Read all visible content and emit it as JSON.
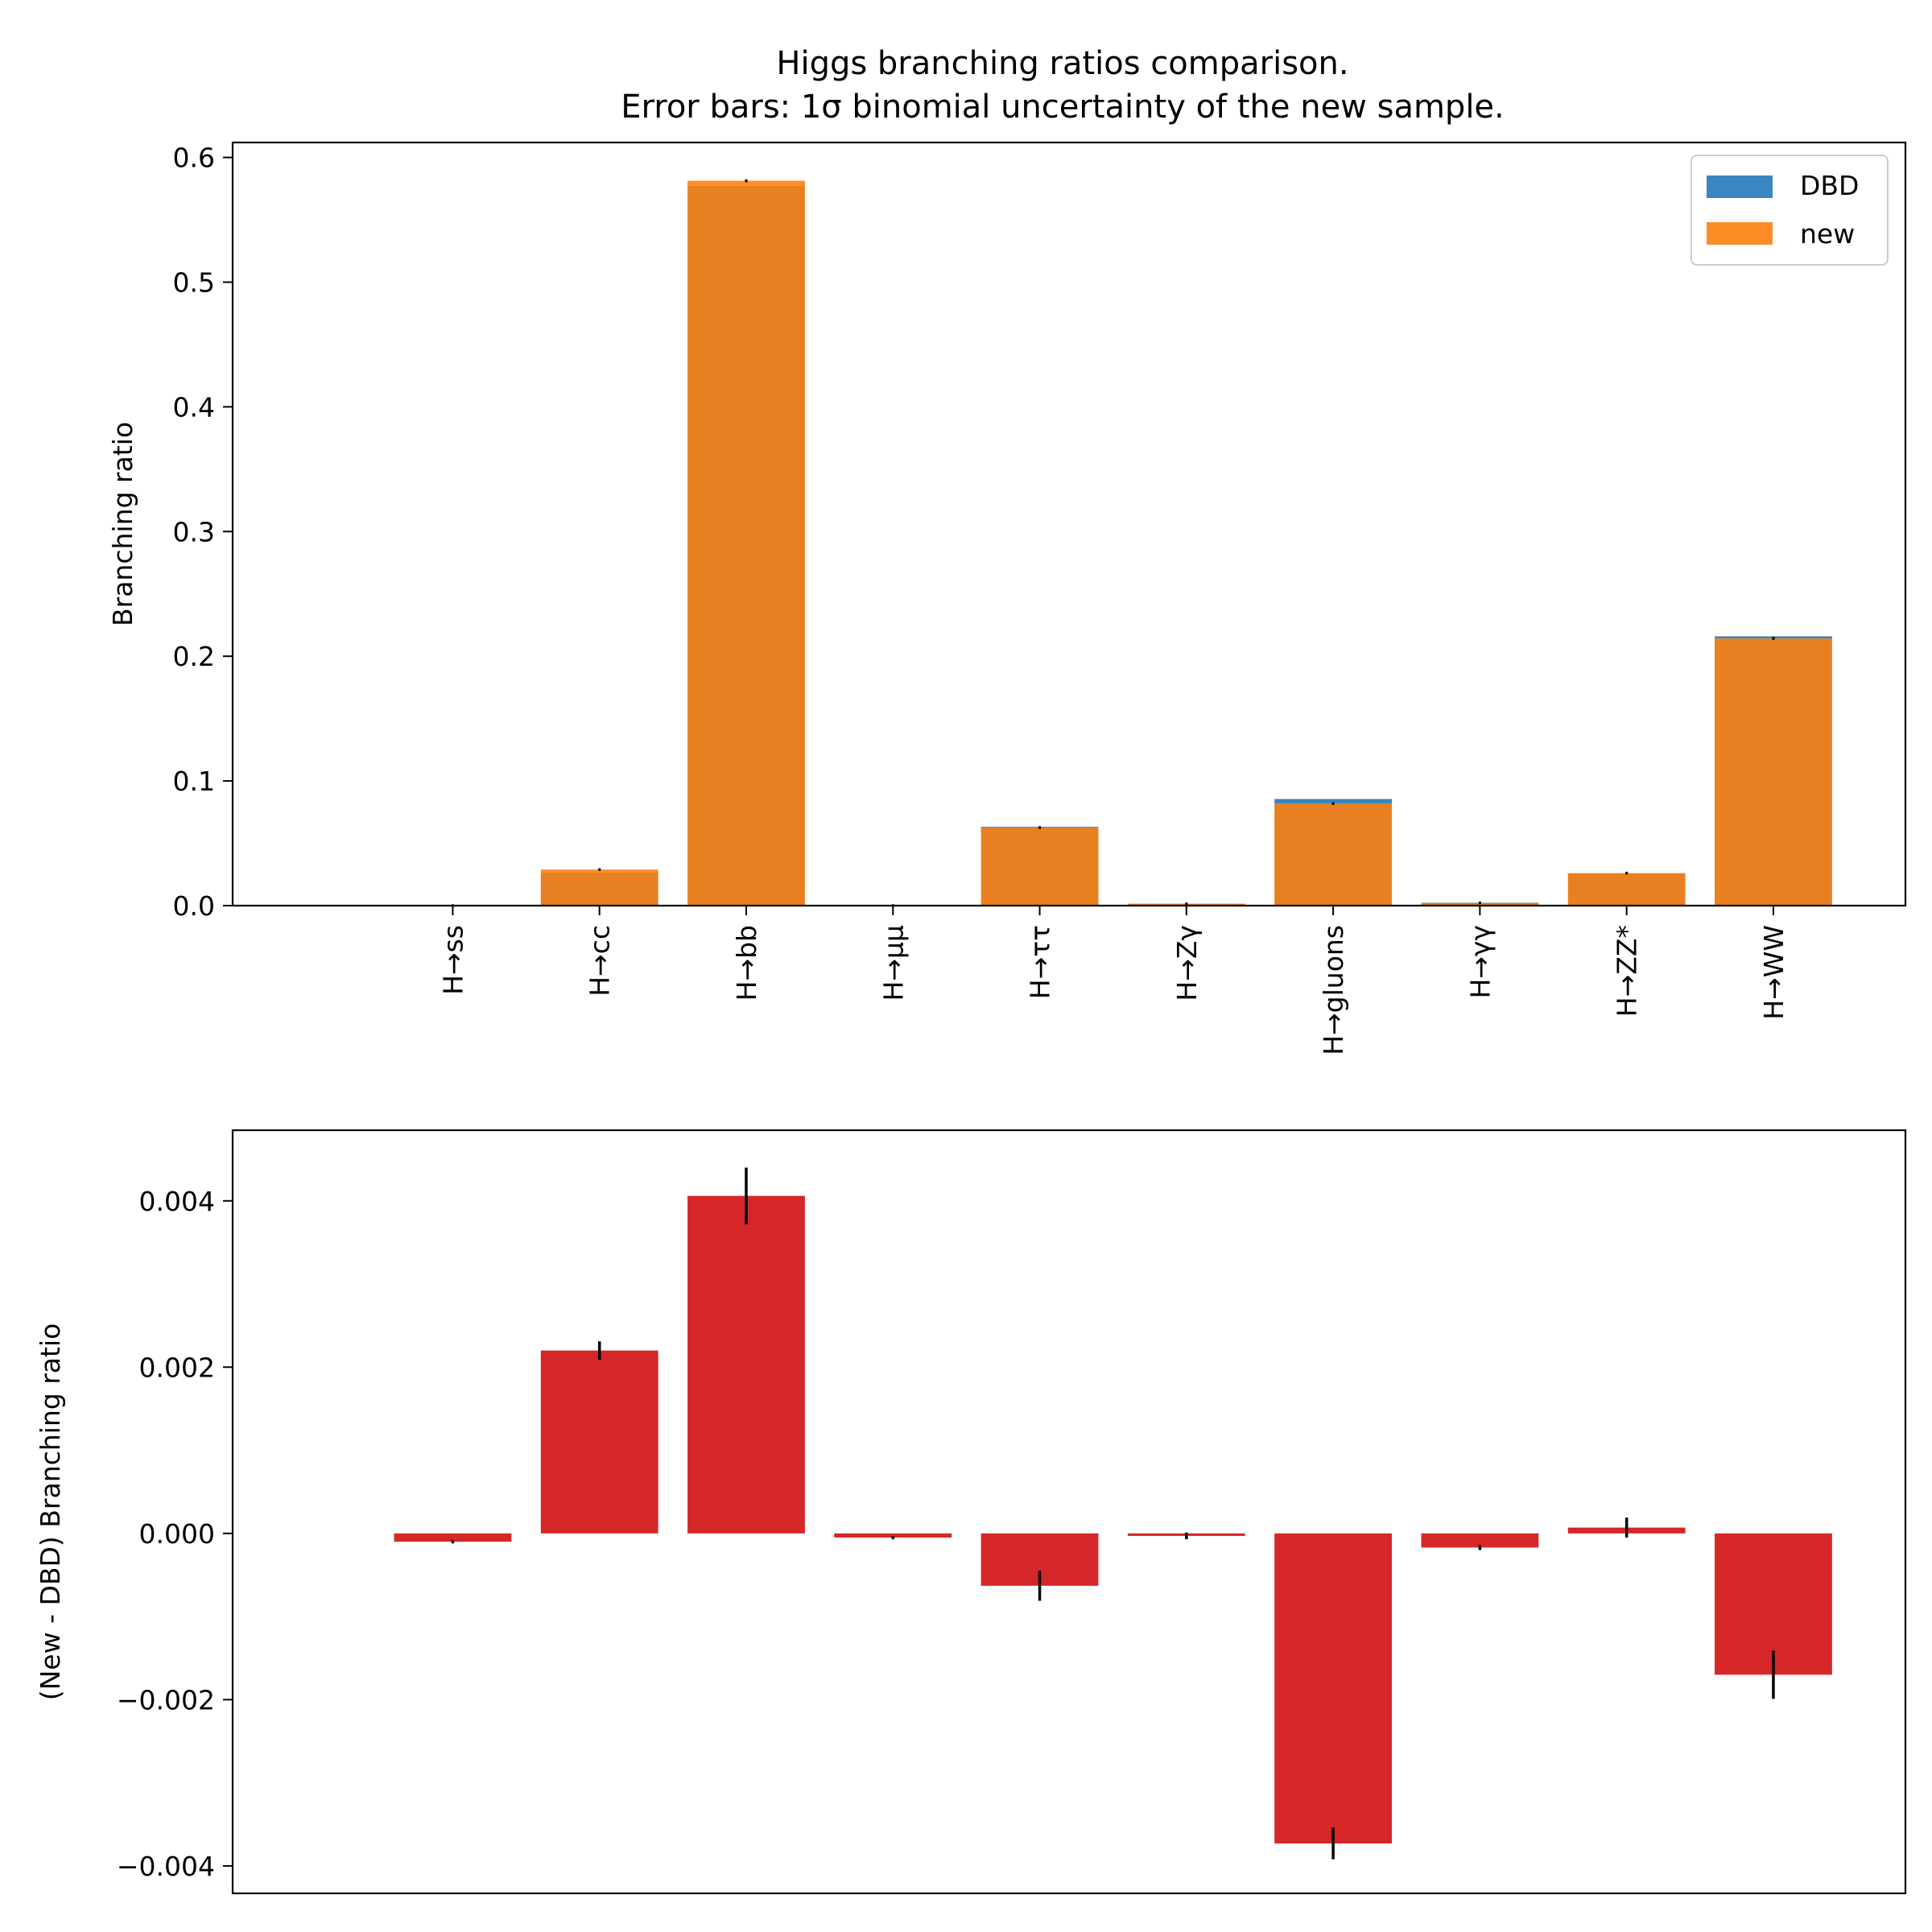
{
  "title_lines": [
    "Higgs branching ratios comparison.",
    "Error bars: 1σ binomial uncertainty of the new sample."
  ],
  "colors": {
    "dbd": "#3a86c0",
    "new": "#fe8c26",
    "overlap": "#e88021",
    "diff": "#d62728",
    "errorbar": "#000000"
  },
  "chart_data": [
    {
      "type": "bar",
      "panel": "top",
      "categories": [
        "H→ss",
        "H→cc",
        "H→bb",
        "H→μμ",
        "H→ττ",
        "H→Zγ",
        "H→gluons",
        "H→γγ",
        "H→ZZ*",
        "H→WW"
      ],
      "series": [
        {
          "name": "DBD",
          "values": [
            0.0002,
            0.0267,
            0.5772,
            0.0002,
            0.0632,
            0.0016,
            0.0855,
            0.0024,
            0.026,
            0.216
          ]
        },
        {
          "name": "new",
          "values": [
            0.0001,
            0.0289,
            0.5813,
            0.0001,
            0.0626,
            0.0015,
            0.0818,
            0.0022,
            0.0261,
            0.2143
          ]
        }
      ],
      "error_bars": {
        "series": "new",
        "values": [
          2e-05,
          0.0001,
          0.0002,
          2e-05,
          0.0001,
          3e-05,
          0.0001,
          3e-05,
          0.0001,
          0.0002
        ]
      },
      "xlabel": "",
      "ylabel": "Branching ratio",
      "ylim": [
        0,
        0.612
      ],
      "yticks": [
        0.0,
        0.1,
        0.2,
        0.3,
        0.4,
        0.5,
        0.6
      ],
      "ytick_labels": [
        "0.0",
        "0.1",
        "0.2",
        "0.3",
        "0.4",
        "0.5",
        "0.6"
      ],
      "legend": {
        "placement": "top-right",
        "entries": [
          "DBD",
          "new"
        ]
      },
      "grid": false
    },
    {
      "type": "bar",
      "panel": "bottom",
      "categories": [
        "H→ss",
        "H→cc",
        "H→bb",
        "H→μμ",
        "H→ττ",
        "H→Zγ",
        "H→gluons",
        "H→γγ",
        "H→ZZ*",
        "H→WW"
      ],
      "values": [
        -0.0001,
        0.0022,
        0.00406,
        -5e-05,
        -0.00063,
        -3e-05,
        -0.00373,
        -0.00017,
        7e-05,
        -0.0017
      ],
      "error_bars": [
        2e-05,
        0.00011,
        0.00034,
        2e-05,
        0.00018,
        4e-05,
        0.00019,
        3e-05,
        0.00012,
        0.00029
      ],
      "xlabel": "",
      "ylabel": "(New - DBD) Branching ratio",
      "ylim": [
        -0.00433,
        0.00485
      ],
      "yticks": [
        -0.004,
        -0.002,
        0.0,
        0.002,
        0.004
      ],
      "ytick_labels": [
        "−0.004",
        "−0.002",
        "0.000",
        "0.002",
        "0.004"
      ],
      "grid": false
    }
  ]
}
